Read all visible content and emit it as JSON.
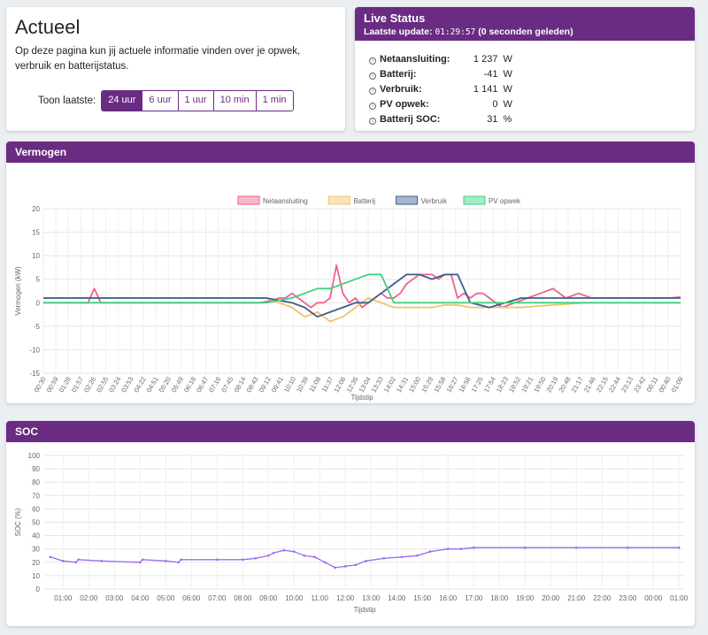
{
  "actueel": {
    "title": "Actueel",
    "description": "Op deze pagina kun jij actuele informatie vinden over je opwek, verbruik en batterijstatus.",
    "toon_label": "Toon laatste:",
    "ranges": [
      "24 uur",
      "6 uur",
      "1 uur",
      "10 min",
      "1 min"
    ],
    "active_range": "24 uur"
  },
  "live": {
    "title": "Live Status",
    "update_label": "Laatste update:",
    "update_time": "01:29:57",
    "update_ago": "(0 seconden geleden)",
    "stats": [
      {
        "name": "Netaansluiting:",
        "value": "1 237",
        "unit": "W"
      },
      {
        "name": "Batterij:",
        "value": "-41",
        "unit": "W"
      },
      {
        "name": "Verbruik:",
        "value": "1 141",
        "unit": "W"
      },
      {
        "name": "PV opwek:",
        "value": "0",
        "unit": "W"
      },
      {
        "name": "Batterij SOC:",
        "value": "31",
        "unit": "%"
      }
    ]
  },
  "vermogen": {
    "title": "Vermogen"
  },
  "soc": {
    "title": "SOC"
  },
  "chart_data": [
    {
      "type": "line",
      "ylabel": "Vermogen (kW)",
      "xlabel": "Tijdstip",
      "ylim": [
        -15,
        20
      ],
      "yticks": [
        20,
        15,
        10,
        5,
        0,
        -5,
        -10,
        -15
      ],
      "grid": true,
      "legend_position": "top",
      "x_ticks": [
        "00:30",
        "00:59",
        "01:28",
        "01:57",
        "02:26",
        "02:55",
        "03:24",
        "03:53",
        "04:22",
        "04:51",
        "05:20",
        "05:49",
        "06:18",
        "06:47",
        "07:16",
        "07:45",
        "08:14",
        "08:43",
        "09:12",
        "09:41",
        "10:10",
        "10:39",
        "11:08",
        "11:37",
        "12:06",
        "12:35",
        "13:04",
        "13:33",
        "14:02",
        "14:31",
        "15:00",
        "15:29",
        "15:58",
        "16:27",
        "16:56",
        "17:25",
        "17:54",
        "18:23",
        "18:52",
        "19:21",
        "19:50",
        "20:19",
        "20:48",
        "21:17",
        "21:46",
        "22:15",
        "22:44",
        "23:13",
        "23:42",
        "00:11",
        "00:40",
        "01:09"
      ],
      "series": [
        {
          "name": "Netaansluiting",
          "color": "#f0628a",
          "x": [
            0,
            0.02,
            0.04,
            0.06,
            0.07,
            0.08,
            0.09,
            0.1,
            0.12,
            0.14,
            0.16,
            0.18,
            0.2,
            0.22,
            0.24,
            0.26,
            0.28,
            0.3,
            0.32,
            0.34,
            0.36,
            0.37,
            0.38,
            0.39,
            0.4,
            0.41,
            0.42,
            0.43,
            0.44,
            0.45,
            0.46,
            0.47,
            0.48,
            0.49,
            0.5,
            0.51,
            0.52,
            0.53,
            0.54,
            0.55,
            0.56,
            0.57,
            0.58,
            0.59,
            0.6,
            0.61,
            0.62,
            0.63,
            0.64,
            0.65,
            0.66,
            0.67,
            0.68,
            0.69,
            0.7,
            0.72,
            0.74,
            0.76,
            0.78,
            0.8,
            0.82,
            0.84,
            0.86,
            0.88,
            0.9,
            0.92,
            0.94,
            0.96,
            0.98,
            1.0
          ],
          "y": [
            0,
            0,
            0,
            0,
            0,
            3,
            0,
            0,
            0,
            0,
            0,
            0,
            0,
            0,
            0,
            0,
            0,
            0,
            0,
            0,
            0.5,
            1,
            1,
            2,
            1,
            0,
            -1,
            0,
            0,
            1,
            8,
            2,
            0,
            1,
            -1,
            0,
            1,
            2,
            1,
            1,
            2,
            4,
            5,
            6,
            6,
            6,
            5,
            6,
            6,
            1,
            2,
            1,
            2,
            2,
            1,
            -1,
            0,
            1,
            2,
            3,
            1,
            2,
            1,
            1,
            1,
            1,
            1,
            1,
            1,
            1.2
          ]
        },
        {
          "name": "Batterij",
          "color": "#f0c36b",
          "x": [
            0,
            0.05,
            0.1,
            0.15,
            0.2,
            0.25,
            0.3,
            0.35,
            0.37,
            0.39,
            0.41,
            0.43,
            0.45,
            0.47,
            0.49,
            0.51,
            0.53,
            0.55,
            0.57,
            0.59,
            0.61,
            0.63,
            0.65,
            0.67,
            0.7,
            0.75,
            0.8,
            0.85,
            0.9,
            0.95,
            1.0
          ],
          "y": [
            1,
            1,
            1,
            1,
            1,
            1,
            1,
            1,
            0,
            -1,
            -3,
            -2,
            -4,
            -3,
            -1,
            1,
            0,
            -1,
            -1,
            -1,
            -1,
            -0.5,
            -0.5,
            -1,
            -1,
            -1,
            -0.5,
            0,
            0,
            0,
            0
          ]
        },
        {
          "name": "Verbruik",
          "color": "#3a5f8c",
          "x": [
            0,
            0.1,
            0.2,
            0.3,
            0.35,
            0.37,
            0.39,
            0.41,
            0.43,
            0.45,
            0.47,
            0.49,
            0.51,
            0.53,
            0.55,
            0.57,
            0.59,
            0.61,
            0.63,
            0.65,
            0.67,
            0.7,
            0.75,
            0.8,
            0.85,
            0.9,
            0.95,
            1.0
          ],
          "y": [
            1,
            1,
            1,
            1,
            1,
            0.5,
            0,
            -1,
            -3,
            -2,
            -1,
            0,
            0,
            2,
            4,
            6,
            6,
            5,
            6,
            6,
            0,
            -1,
            1,
            1,
            1,
            1,
            1,
            1
          ]
        },
        {
          "name": "PV opwek",
          "color": "#3fd17f",
          "x": [
            0,
            0.3,
            0.35,
            0.37,
            0.39,
            0.41,
            0.43,
            0.45,
            0.47,
            0.49,
            0.51,
            0.53,
            0.55,
            0.57,
            0.59,
            0.61,
            0.63,
            0.65,
            0.67,
            0.7,
            0.73,
            0.76,
            0.8,
            1.0
          ],
          "y": [
            0,
            0,
            0,
            0.5,
            1,
            2,
            3,
            3,
            4,
            5,
            6,
            6,
            0,
            0,
            0,
            0,
            0,
            0,
            0,
            0,
            0,
            0,
            0,
            0
          ]
        }
      ]
    },
    {
      "type": "line",
      "ylabel": "SOC (%)",
      "xlabel": "Tijdstip",
      "ylim": [
        0,
        100
      ],
      "yticks": [
        100,
        90,
        80,
        70,
        60,
        50,
        40,
        30,
        20,
        10,
        0
      ],
      "grid": true,
      "x_ticks": [
        "01:00",
        "02:00",
        "03:00",
        "04:00",
        "05:00",
        "06:00",
        "07:00",
        "08:00",
        "09:00",
        "10:00",
        "11:00",
        "12:00",
        "13:00",
        "14:00",
        "15:00",
        "16:00",
        "17:00",
        "18:00",
        "19:00",
        "20:00",
        "21:00",
        "22:00",
        "23:00",
        "00:00",
        "01:00"
      ],
      "series": [
        {
          "name": "SOC",
          "color": "#9b6cf0",
          "x": [
            0.5,
            1.0,
            1.5,
            1.6,
            2.5,
            4.0,
            4.1,
            5.0,
            5.5,
            5.6,
            7.0,
            8.0,
            8.5,
            9.0,
            9.2,
            9.6,
            10.0,
            10.4,
            10.8,
            11.2,
            11.6,
            12.0,
            12.4,
            12.8,
            13.5,
            14.2,
            14.8,
            15.3,
            16.0,
            16.5,
            17.0,
            19.0,
            21.0,
            23.0,
            25.0
          ],
          "y": [
            24,
            21,
            20,
            22,
            21,
            20,
            22,
            21,
            20,
            22,
            22,
            22,
            23,
            25,
            27,
            29,
            28,
            25,
            24,
            20,
            16,
            17,
            18,
            21,
            23,
            24,
            25,
            28,
            30,
            30,
            31,
            31,
            31,
            31,
            31
          ]
        }
      ]
    }
  ]
}
